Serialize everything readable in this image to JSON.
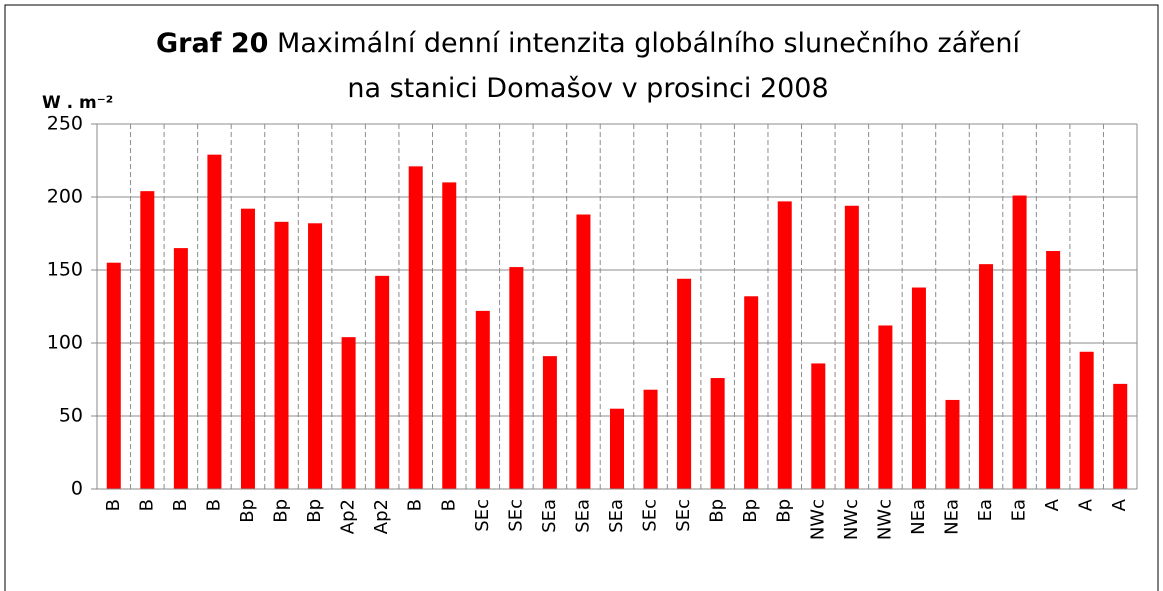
{
  "chart_data": {
    "type": "bar",
    "title_label": "Graf 20",
    "title": "Maximální denní intenzita globálního slunečního záření",
    "subtitle": "na stanici Domašov v prosinci 2008",
    "y_label": "W . m⁻²",
    "categories": [
      "B",
      "B",
      "B",
      "B",
      "Bp",
      "Bp",
      "Bp",
      "Ap2",
      "Ap2",
      "B",
      "B",
      "SEc",
      "SEc",
      "SEa",
      "SEa",
      "SEa",
      "SEc",
      "SEc",
      "Bp",
      "Bp",
      "Bp",
      "NWc",
      "NWc",
      "NWc",
      "NEa",
      "NEa",
      "Ea",
      "Ea",
      "A",
      "A",
      "A"
    ],
    "values": [
      155,
      204,
      165,
      229,
      192,
      183,
      182,
      104,
      146,
      221,
      210,
      122,
      152,
      91,
      188,
      55,
      68,
      144,
      76,
      132,
      197,
      86,
      194,
      112,
      138,
      61,
      154,
      201,
      163,
      94,
      72
    ],
    "color": "#ff0000",
    "ylim": [
      0,
      250
    ],
    "yticks": [
      0,
      50,
      100,
      150,
      200,
      250
    ],
    "grid": true
  }
}
